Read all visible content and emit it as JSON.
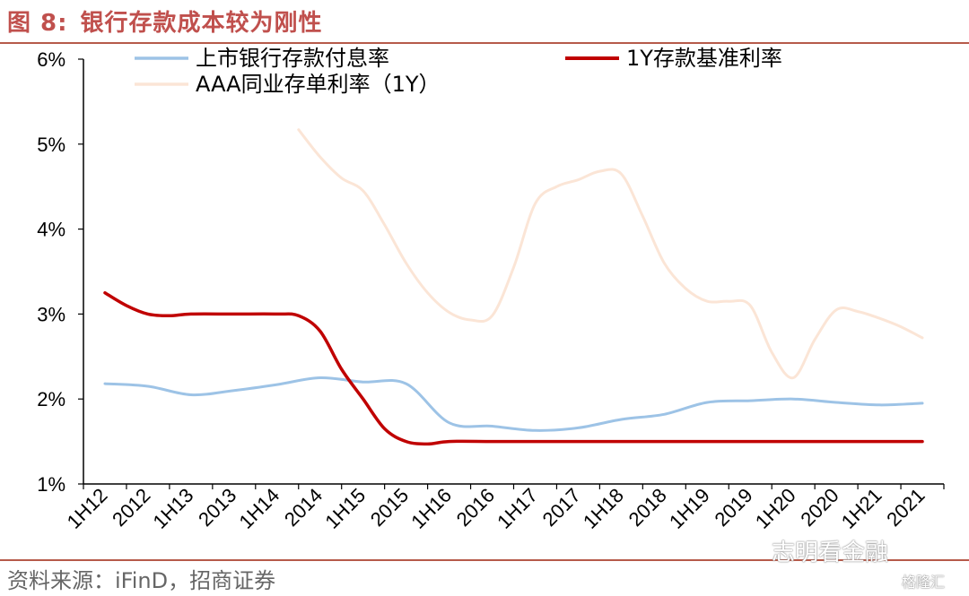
{
  "header": {
    "fig_no": "图 8:",
    "title": "银行存款成本较为刚性"
  },
  "footer": {
    "source": "资料来源：iFinD，招商证券"
  },
  "watermark": {
    "text": "志明看金融",
    "sub": "格隆汇"
  },
  "chart_data": {
    "type": "line",
    "title": "",
    "xlabel": "",
    "ylabel": "",
    "ylim": [
      1,
      6
    ],
    "yticks": [
      "1%",
      "2%",
      "3%",
      "4%",
      "5%",
      "6%"
    ],
    "categories": [
      "1H12",
      "2012",
      "1H13",
      "2013",
      "1H14",
      "2014",
      "1H15",
      "2015",
      "1H16",
      "2016",
      "1H17",
      "2017",
      "1H18",
      "2018",
      "1H19",
      "2019",
      "1H20",
      "2020",
      "1H21",
      "2021"
    ],
    "legend_placement": "top",
    "grid": false,
    "series": [
      {
        "name": "上市银行存款付息率",
        "color": "#9dc3e6",
        "x": [
          0,
          1,
          2,
          3,
          4,
          5,
          6,
          7,
          8,
          9,
          10,
          11,
          12,
          13,
          14,
          15,
          16,
          17,
          18,
          19
        ],
        "y": [
          2.18,
          2.15,
          2.05,
          2.1,
          2.17,
          2.25,
          2.2,
          2.18,
          1.72,
          1.68,
          1.63,
          1.66,
          1.76,
          1.82,
          1.96,
          1.98,
          2.0,
          1.96,
          1.93,
          1.95
        ]
      },
      {
        "name": "1Y存款基准利率",
        "color": "#c00000",
        "x": [
          0,
          0.5,
          1,
          1.5,
          2,
          3,
          4,
          4.5,
          5,
          5.5,
          6,
          6.5,
          7,
          7.5,
          8,
          9,
          10,
          11,
          12,
          13,
          14,
          15,
          16,
          17,
          18,
          19
        ],
        "y": [
          3.25,
          3.1,
          3.0,
          2.98,
          3.0,
          3.0,
          3.0,
          2.98,
          2.8,
          2.35,
          2.0,
          1.65,
          1.5,
          1.47,
          1.5,
          1.5,
          1.5,
          1.5,
          1.5,
          1.5,
          1.5,
          1.5,
          1.5,
          1.5,
          1.5,
          1.5
        ]
      },
      {
        "name": "AAA同业存单利率（1Y）",
        "color": "#fbe5d6",
        "x": [
          4.5,
          5,
          5.5,
          6,
          6.5,
          7,
          7.5,
          8,
          8.5,
          9,
          9.5,
          10,
          10.5,
          11,
          11.5,
          12,
          12.5,
          13,
          13.5,
          14,
          14.5,
          15,
          15.5,
          16,
          16.5,
          17,
          17.5,
          18,
          18.5,
          19
        ],
        "y": [
          5.17,
          4.85,
          4.6,
          4.45,
          4.05,
          3.6,
          3.25,
          3.02,
          2.93,
          2.98,
          3.55,
          4.3,
          4.5,
          4.58,
          4.68,
          4.65,
          4.15,
          3.6,
          3.3,
          3.15,
          3.15,
          3.1,
          2.55,
          2.25,
          2.7,
          3.05,
          3.03,
          2.95,
          2.85,
          2.72
        ]
      }
    ]
  }
}
